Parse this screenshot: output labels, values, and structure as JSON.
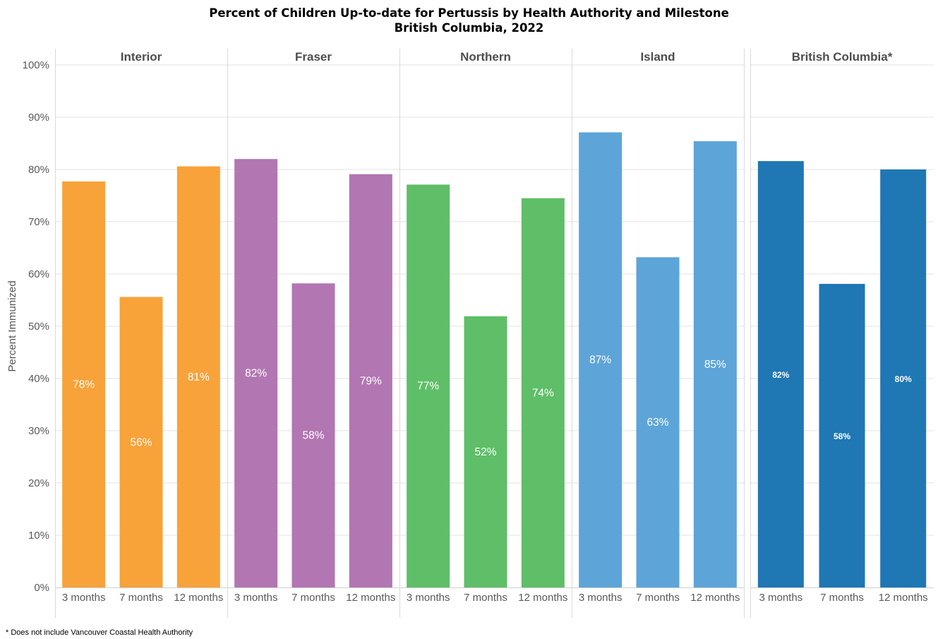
{
  "title_line1": "Percent of Children Up-to-date for Pertussis by Health Authority and Milestone",
  "title_line2": "British Columbia, 2022",
  "footnote": "* Does not include Vancouver Coastal Health Authority",
  "chart_data": {
    "type": "bar",
    "ylabel": "Percent Immunized",
    "ylim": [
      0,
      100
    ],
    "yticks": [
      "0%",
      "10%",
      "20%",
      "30%",
      "40%",
      "50%",
      "60%",
      "70%",
      "80%",
      "90%",
      "100%"
    ],
    "grid": true,
    "categories": [
      "3 months",
      "7 months",
      "12 months"
    ],
    "panels": [
      {
        "name": "Interior",
        "color": "#F8A23A",
        "values": [
          77.7,
          55.6,
          80.6
        ],
        "labels": [
          "78%",
          "56%",
          "81%"
        ]
      },
      {
        "name": "Fraser",
        "color": "#B276B2",
        "values": [
          82.0,
          58.2,
          79.1
        ],
        "labels": [
          "82%",
          "58%",
          "79%"
        ]
      },
      {
        "name": "Northern",
        "color": "#5FBE68",
        "values": [
          77.1,
          51.9,
          74.5
        ],
        "labels": [
          "77%",
          "52%",
          "74%"
        ]
      },
      {
        "name": "Island",
        "color": "#5DA4D9",
        "values": [
          87.1,
          63.2,
          85.4
        ],
        "labels": [
          "87%",
          "63%",
          "85%"
        ]
      },
      {
        "name": "British Columbia*",
        "color": "#1F77B4",
        "values": [
          81.6,
          58.1,
          80.0
        ],
        "labels": [
          "82%",
          "58%",
          "80%"
        ]
      }
    ]
  }
}
